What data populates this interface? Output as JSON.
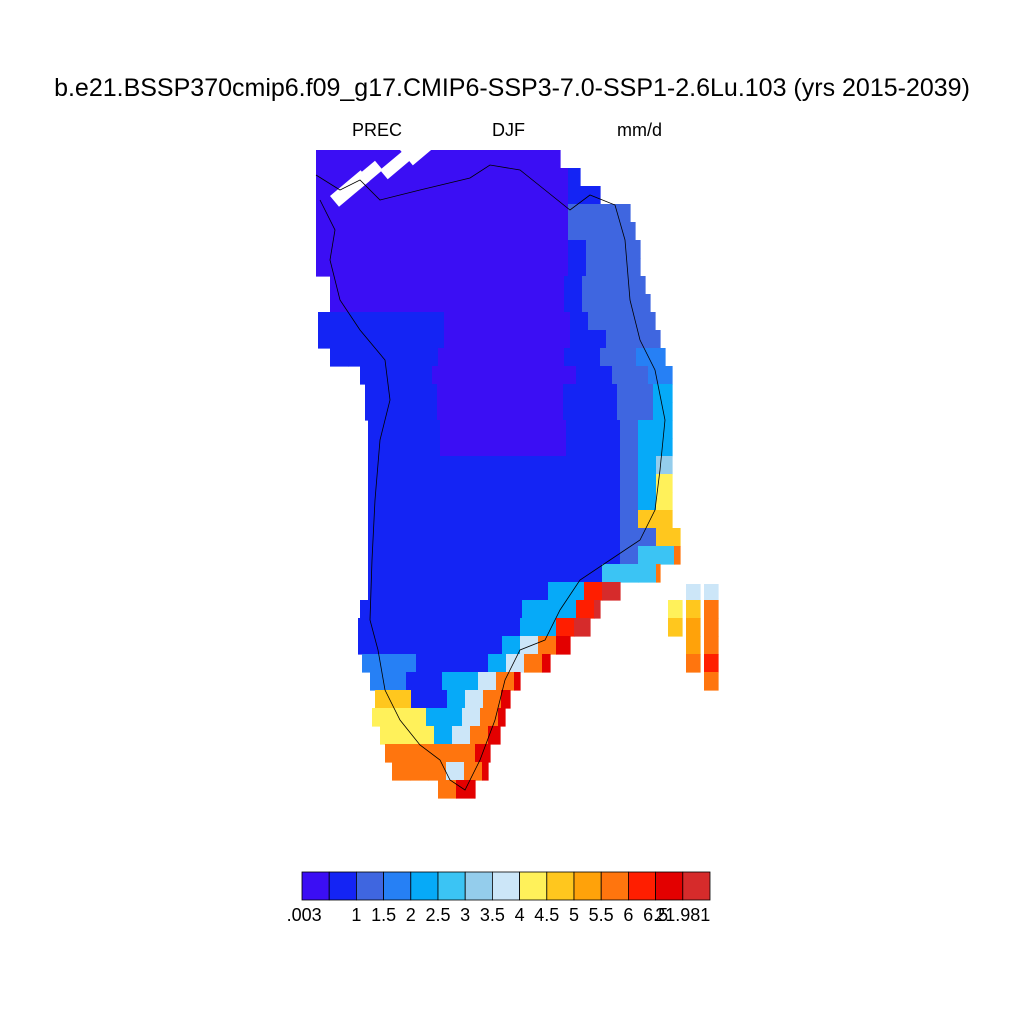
{
  "chart_data": {
    "type": "heatmap",
    "title": "b.e21.BSSP370cmip6.f09_g17.CMIP6-SSP3-7.0-SSP1-2.6Lu.103 (yrs 2015-2039)",
    "left_string": "PREC",
    "center_string": "DJF",
    "right_string": "mm/d",
    "colorbar": {
      "colors": [
        "#3b0ef4",
        "#1424f4",
        "#3f66e0",
        "#2680f5",
        "#06aaf8",
        "#3bc4f4",
        "#94cdec",
        "#cce6f8",
        "#fff15a",
        "#ffc71e",
        "#ffa20a",
        "#ff750e",
        "#ff1e00",
        "#e30000",
        "#d62b2b"
      ],
      "tick_labels": [
        ".003",
        "1",
        "1.5",
        "2",
        "2.5",
        "3",
        "3.5",
        "4",
        "4.5",
        "5",
        "5.5",
        "6",
        "6.5",
        "21.981"
      ]
    },
    "levels": [
      0.003,
      1,
      1.5,
      2,
      2.5,
      3,
      3.5,
      4,
      4.5,
      5,
      5.5,
      6,
      6.5,
      21.981
    ],
    "field_description_levels": {
      "north_interior": 0,
      "west_and_north_margins": 1,
      "southeast_coast": [
        11,
        12,
        13,
        14
      ]
    }
  }
}
